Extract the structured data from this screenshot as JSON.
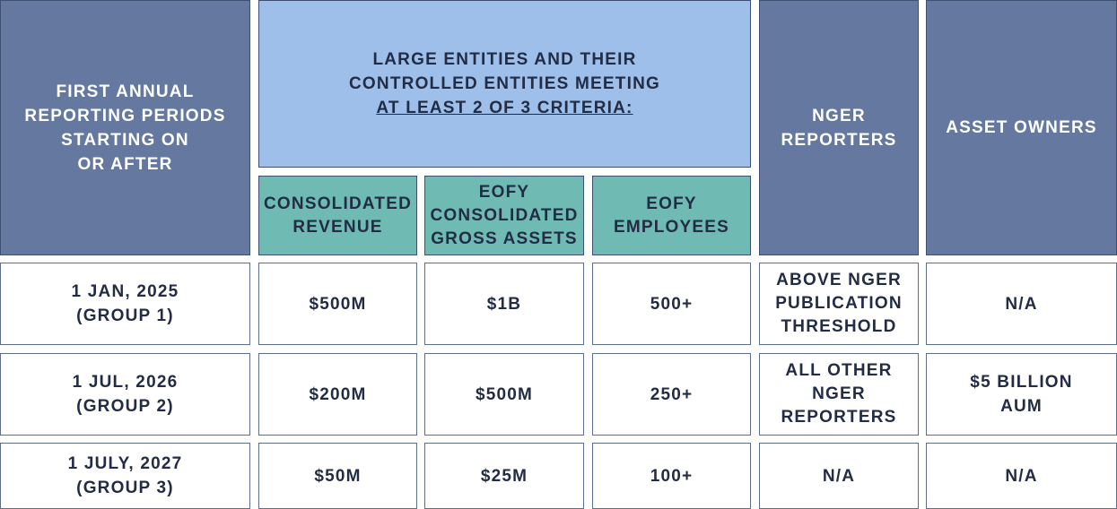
{
  "header": {
    "period": [
      "FIRST ANNUAL",
      "REPORTING PERIODS",
      "STARTING ON",
      "OR AFTER"
    ],
    "criteria": [
      "LARGE ENTITIES AND THEIR",
      "CONTROLLED ENTITIES MEETING",
      "AT LEAST 2 OF 3 CRITERIA:"
    ],
    "nger": [
      "NGER",
      "REPORTERS"
    ],
    "asset_owners": "ASSET OWNERS",
    "revenue": [
      "CONSOLIDATED",
      "REVENUE"
    ],
    "assets": [
      "EOFY",
      "CONSOLIDATED",
      "GROSS ASSETS"
    ],
    "employees": [
      "EOFY",
      "EMPLOYEES"
    ]
  },
  "rows": [
    {
      "period": [
        "1 JAN, 2025",
        "(GROUP 1)"
      ],
      "revenue": "$500M",
      "assets": "$1B",
      "employees": "500+",
      "nger": [
        "ABOVE NGER",
        "PUBLICATION",
        "THRESHOLD"
      ],
      "asset_owners": [
        "N/A"
      ]
    },
    {
      "period": [
        "1 JUL, 2026",
        "(GROUP 2)"
      ],
      "revenue": "$200M",
      "assets": "$500M",
      "employees": "250+",
      "nger": [
        "ALL OTHER",
        "NGER",
        "REPORTERS"
      ],
      "asset_owners": [
        "$5 BILLION",
        "AUM"
      ]
    },
    {
      "period": [
        "1 JULY, 2027",
        "(GROUP 3)"
      ],
      "revenue": "$50M",
      "assets": "$25M",
      "employees": "100+",
      "nger": [
        "N/A"
      ],
      "asset_owners": [
        "N/A"
      ]
    }
  ]
}
